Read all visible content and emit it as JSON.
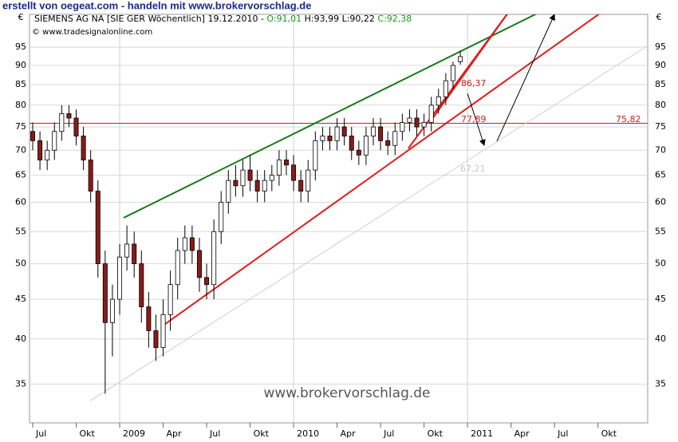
{
  "header": {
    "title": "erstellt von oegeat.com - handeln mit www.brokervorschlag.de"
  },
  "chart_data": {
    "type": "candlestick",
    "legend": {
      "name": "SIEMENS AG NA [SIE GER  Wöchentlich] 19.12.2010 -",
      "open": "O:91,01",
      "high": "H:93,99",
      "low": "L:90,22",
      "close": "C:92,38"
    },
    "source": "© www.tradesignalonline.com",
    "watermark": "www.brokervorschlag.de",
    "currency": "€",
    "log_scale": true,
    "grid": true,
    "ylim": [
      31.2,
      104.7
    ],
    "yticks": [
      35,
      40,
      45,
      50,
      55,
      60,
      65,
      70,
      75,
      80,
      85,
      90,
      95
    ],
    "xlim": [
      5.78,
      48.43
    ],
    "xticks": [
      {
        "value": 6,
        "label": "Jul"
      },
      {
        "value": 9,
        "label": "Okt"
      },
      {
        "value": 12,
        "label": "2009"
      },
      {
        "value": 15,
        "label": "Apr"
      },
      {
        "value": 18,
        "label": "Jul"
      },
      {
        "value": 21,
        "label": "Okt"
      },
      {
        "value": 24,
        "label": "2010"
      },
      {
        "value": 27,
        "label": "Apr"
      },
      {
        "value": 30,
        "label": "Jul"
      },
      {
        "value": 33,
        "label": "Okt"
      },
      {
        "value": 36,
        "label": "2011"
      },
      {
        "value": 39,
        "label": "Apr"
      },
      {
        "value": 42,
        "label": "Jul"
      },
      {
        "value": 45,
        "label": "Okt"
      }
    ],
    "up_color": "#ffffff",
    "down_color": "#8b1a1a",
    "x": [
      6,
      6.5,
      7,
      7.5,
      8,
      8.5,
      9,
      9.5,
      10,
      10.5,
      11,
      11.5,
      12,
      12.5,
      13,
      13.5,
      14,
      14.5,
      15,
      15.5,
      16,
      16.5,
      17,
      17.5,
      18,
      18.5,
      19,
      19.5,
      20,
      20.5,
      21,
      21.5,
      22,
      22.5,
      23,
      23.5,
      24,
      24.5,
      25,
      25.5,
      26,
      26.5,
      27,
      27.5,
      28,
      28.5,
      29,
      29.5,
      30,
      30.5,
      31,
      31.5,
      32,
      32.5,
      33,
      33.5,
      34,
      34.5,
      35,
      35.5
    ],
    "open": [
      74,
      72,
      68,
      70,
      74,
      78,
      77,
      73,
      68,
      62,
      50,
      42,
      45,
      51,
      53,
      50,
      44,
      41,
      39,
      43,
      47,
      52,
      54,
      52,
      48,
      47,
      55,
      60,
      64,
      63,
      66,
      64,
      62,
      64,
      65,
      68,
      67,
      64,
      62,
      66,
      72,
      73,
      72,
      75,
      73,
      70,
      69,
      73,
      75,
      72,
      71,
      74,
      76,
      77,
      75,
      76,
      80,
      82,
      86,
      91.01
    ],
    "high": [
      76,
      74,
      72,
      76,
      80,
      80,
      79,
      75,
      70,
      64,
      52,
      47,
      53,
      56,
      55,
      52,
      46,
      43,
      45,
      49,
      54,
      56,
      56,
      54,
      50,
      57,
      62,
      66,
      67,
      68,
      69,
      66,
      66,
      67,
      70,
      70,
      69,
      66,
      68,
      74,
      75,
      75,
      77,
      77,
      75,
      72,
      75,
      77,
      77,
      74,
      76,
      78,
      79,
      79,
      78,
      82,
      84,
      88,
      91,
      93.99
    ],
    "low": [
      70,
      66,
      66,
      68,
      72,
      75,
      71,
      66,
      60,
      48,
      34,
      38,
      43,
      49,
      48,
      42,
      39,
      37.5,
      38,
      41,
      45,
      50,
      50,
      46,
      45,
      45,
      53,
      58,
      61,
      61,
      62,
      60,
      60,
      62,
      63,
      65,
      62,
      60,
      60,
      64,
      70,
      70,
      70,
      71,
      68,
      67,
      67,
      71,
      70,
      69,
      69,
      72,
      74,
      73,
      73,
      74,
      78,
      80,
      84,
      90.22
    ],
    "close": [
      72,
      68,
      70,
      74,
      78,
      77,
      73,
      68,
      62,
      50,
      42,
      45,
      51,
      53,
      50,
      44,
      41,
      39,
      43,
      47,
      52,
      54,
      52,
      48,
      47,
      55,
      60,
      64,
      63,
      66,
      64,
      62,
      64,
      65,
      68,
      67,
      64,
      62,
      66,
      72,
      73,
      72,
      75,
      73,
      70,
      69,
      73,
      75,
      72,
      71,
      74,
      76,
      77,
      75,
      76,
      80,
      82,
      86,
      90,
      92.38
    ],
    "trendlines": [
      {
        "color": "#1a7a1a",
        "x": [
          12.28,
          40.9
        ],
        "y": [
          57.3,
          105.2
        ]
      },
      {
        "color": "#e01b1b",
        "x": [
          14.97,
          45.35
        ],
        "y": [
          41.6,
          105.7
        ]
      },
      {
        "color": "#e01b1b",
        "x": [
          31.92,
          38.8
        ],
        "y": [
          70.4,
          105.2
        ]
      },
      {
        "color": "#e01b1b",
        "x": [
          33.46,
          38.8
        ],
        "y": [
          76.3,
          105.2
        ]
      },
      {
        "color": "#d0d0d0",
        "x": [
          9.96,
          48.43
        ],
        "y": [
          33.3,
          95.4
        ]
      }
    ],
    "hlines": [
      {
        "color": "#c02020",
        "value": 75.82
      }
    ],
    "arrows": [
      {
        "x": [
          36.0,
          37.15
        ],
        "y": [
          82.8,
          71.0
        ]
      },
      {
        "x": [
          38.03,
          42.0
        ],
        "y": [
          71.9,
          104.7
        ]
      }
    ],
    "annotations": [
      {
        "text": "86,37",
        "color": "#d02020"
      },
      {
        "text": "77,89",
        "color": "#d02020"
      },
      {
        "text": "75,82",
        "color": "#d02020"
      },
      {
        "text": "67,21",
        "color": "#c8c8c8"
      }
    ]
  }
}
